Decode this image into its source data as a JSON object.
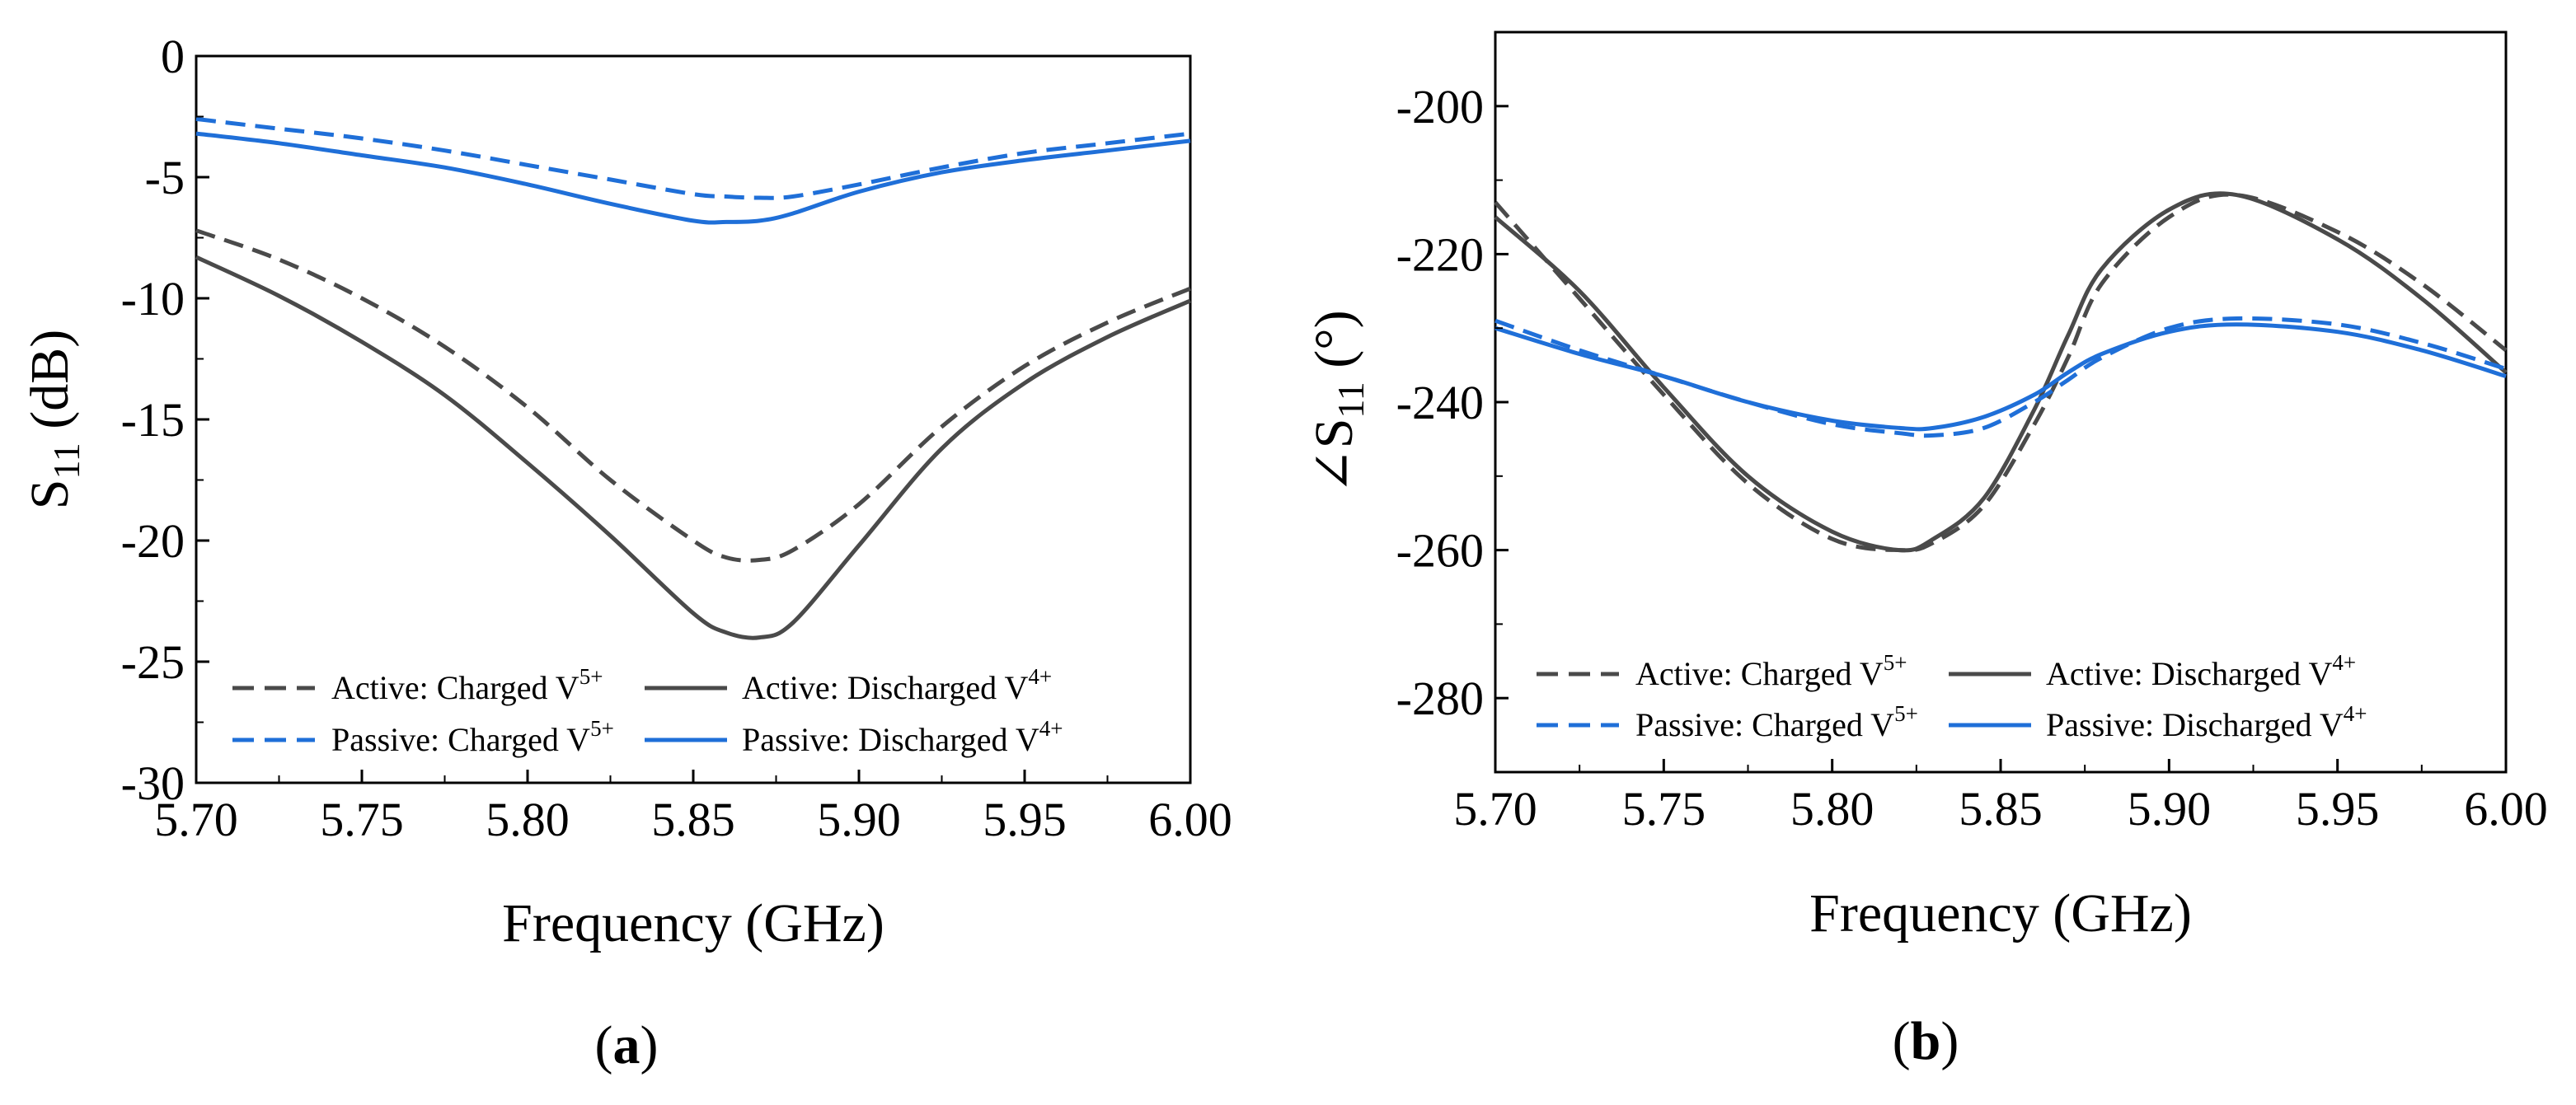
{
  "colors": {
    "active": "#4a4a4a",
    "passive": "#1f6fd8"
  },
  "chart_data": [
    {
      "type": "line",
      "panel_letter": "a",
      "xlabel": "Frequency (GHz)",
      "ylabel": {
        "main": "S",
        "sub": "11",
        "unit": " (dB)"
      },
      "xlim": [
        5.7,
        6.0
      ],
      "ylim": [
        -30,
        0
      ],
      "xticks": [
        5.7,
        5.75,
        5.8,
        5.85,
        5.9,
        5.95,
        6.0
      ],
      "xtick_labels": [
        "5.70",
        "5.75",
        "5.80",
        "5.85",
        "5.90",
        "5.95",
        "6.00"
      ],
      "yticks": [
        0,
        -5,
        -10,
        -15,
        -20,
        -25,
        -30
      ],
      "ytick_labels": [
        "0",
        "-5",
        "-10",
        "-15",
        "-20",
        "-25",
        "-30"
      ],
      "x": [
        5.7,
        5.725,
        5.75,
        5.775,
        5.8,
        5.825,
        5.85,
        5.86,
        5.87,
        5.88,
        5.9,
        5.925,
        5.95,
        5.975,
        6.0
      ],
      "series": [
        {
          "name": "Active: Charged V",
          "sup": "5+",
          "group": "active",
          "dash": true,
          "values": [
            -7.2,
            -8.4,
            -10.0,
            -12.0,
            -14.5,
            -17.5,
            -20.0,
            -20.7,
            -20.8,
            -20.4,
            -18.5,
            -15.3,
            -12.8,
            -11.0,
            -9.6
          ]
        },
        {
          "name": "Active: Discharged V",
          "sup": "4+",
          "group": "active",
          "dash": false,
          "values": [
            -8.3,
            -9.9,
            -11.8,
            -14.0,
            -16.8,
            -19.8,
            -23.0,
            -23.8,
            -24.0,
            -23.4,
            -20.2,
            -16.2,
            -13.5,
            -11.6,
            -10.1
          ]
        },
        {
          "name": "Passive: Charged V",
          "sup": "5+",
          "group": "passive",
          "dash": true,
          "values": [
            -2.6,
            -3.0,
            -3.4,
            -3.9,
            -4.5,
            -5.1,
            -5.7,
            -5.8,
            -5.85,
            -5.8,
            -5.3,
            -4.6,
            -4.0,
            -3.6,
            -3.2
          ]
        },
        {
          "name": "Passive: Discharged V",
          "sup": "4+",
          "group": "passive",
          "dash": false,
          "values": [
            -3.2,
            -3.6,
            -4.1,
            -4.6,
            -5.3,
            -6.1,
            -6.8,
            -6.85,
            -6.8,
            -6.5,
            -5.6,
            -4.8,
            -4.3,
            -3.9,
            -3.5
          ]
        }
      ]
    },
    {
      "type": "line",
      "panel_letter": "b",
      "xlabel": "Frequency (GHz)",
      "ylabel": {
        "angle": "∠",
        "main": "S",
        "sub": "11",
        "unit": " (°)"
      },
      "xlim": [
        5.7,
        6.0
      ],
      "ylim": [
        -290,
        -190
      ],
      "xticks": [
        5.7,
        5.75,
        5.8,
        5.85,
        5.9,
        5.95,
        6.0
      ],
      "xtick_labels": [
        "5.70",
        "5.75",
        "5.80",
        "5.85",
        "5.90",
        "5.95",
        "6.00"
      ],
      "yticks": [
        -200,
        -220,
        -240,
        -260,
        -280
      ],
      "ytick_labels": [
        "-200",
        "-220",
        "-240",
        "-260",
        "-280"
      ],
      "x": [
        5.7,
        5.725,
        5.75,
        5.775,
        5.8,
        5.82,
        5.83,
        5.845,
        5.86,
        5.87,
        5.88,
        5.9,
        5.92,
        5.95,
        5.975,
        6.0
      ],
      "series": [
        {
          "name": "Active: Charged V",
          "sup": "5+",
          "group": "active",
          "dash": true,
          "values": [
            -213,
            -226,
            -239,
            -251,
            -258.5,
            -260,
            -259,
            -254,
            -243,
            -234,
            -224,
            -215,
            -212,
            -217,
            -224,
            -233
          ]
        },
        {
          "name": "Active: Discharged V",
          "sup": "4+",
          "group": "active",
          "dash": false,
          "values": [
            -215,
            -225,
            -238,
            -250,
            -257.5,
            -260,
            -258.5,
            -253,
            -241,
            -231,
            -222,
            -214,
            -212,
            -218,
            -226,
            -236
          ]
        },
        {
          "name": "Passive: Charged V",
          "sup": "5+",
          "group": "passive",
          "dash": true,
          "values": [
            -229,
            -233,
            -236.5,
            -240,
            -243,
            -244.2,
            -244.5,
            -243.5,
            -240,
            -237,
            -234,
            -230,
            -228.7,
            -229.5,
            -232,
            -235.5
          ]
        },
        {
          "name": "Passive: Discharged V",
          "sup": "4+",
          "group": "passive",
          "dash": false,
          "values": [
            -230,
            -233.5,
            -236.5,
            -240,
            -242.5,
            -243.5,
            -243.5,
            -242,
            -239,
            -236,
            -233.5,
            -230.5,
            -229.5,
            -230.5,
            -233,
            -236.5
          ]
        }
      ]
    }
  ]
}
